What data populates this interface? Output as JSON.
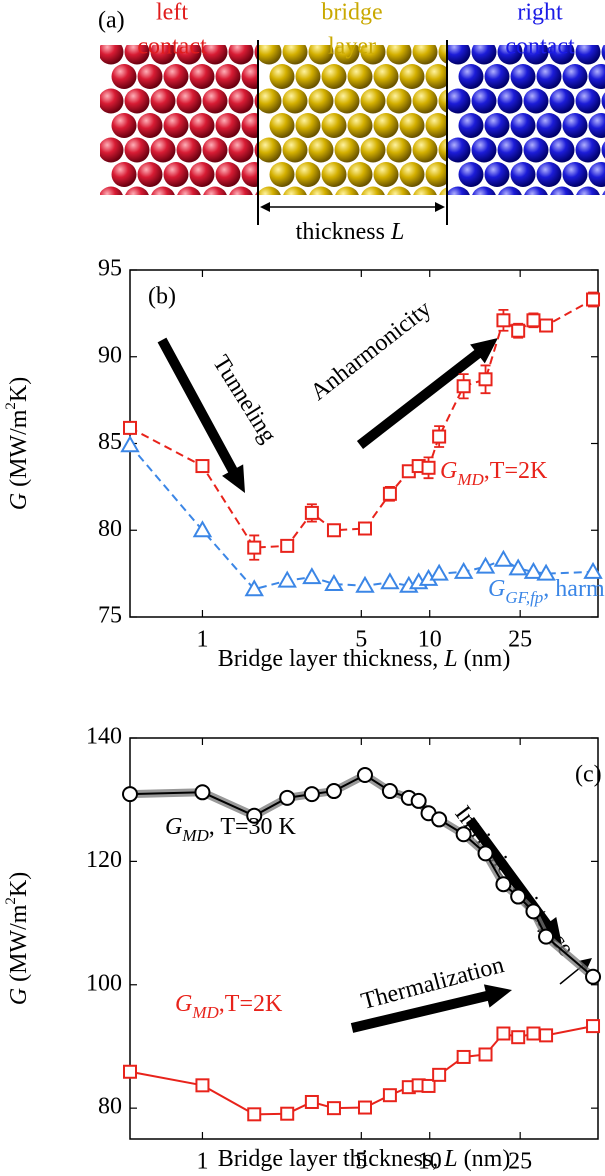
{
  "panel_a": {
    "label": "(a)",
    "left": [
      "left",
      "contact"
    ],
    "bridge": [
      "bridge",
      "layer"
    ],
    "right": [
      "right",
      "contact"
    ],
    "thickness": [
      "thickness ",
      "L"
    ]
  },
  "chart_data": [
    {
      "type": "line",
      "panel_label": "(b)",
      "log_x": true,
      "grid": false,
      "x_label": [
        "Bridge layer thickness, ",
        "L",
        " (nm)"
      ],
      "y_label": [
        "G",
        " (MW/m",
        "2",
        "K)"
      ],
      "x": [
        0.48,
        1.0,
        1.69,
        2.36,
        3.03,
        3.79,
        5.19,
        6.68,
        8.09,
        8.94,
        9.88,
        11.0,
        14.1,
        17.6,
        21.1,
        24.5,
        28.6,
        32.5,
        52.3
      ],
      "xlim": [
        0.48,
        55
      ],
      "xticks": [
        1,
        5,
        10,
        25
      ],
      "ylim": [
        75,
        95
      ],
      "yticks": [
        75,
        80,
        85,
        90,
        95
      ],
      "annotations": [
        "Tunneling",
        "Anharmonicity"
      ],
      "series": [
        {
          "name": [
            "G",
            "MD",
            ",T=2K"
          ],
          "color": "#e8231b",
          "marker": "square",
          "dashed": true,
          "values": [
            85.9,
            83.7,
            79.0,
            79.1,
            81.0,
            80.0,
            80.1,
            82.1,
            83.4,
            83.7,
            83.6,
            85.4,
            88.3,
            88.7,
            92.1,
            91.5,
            92.1,
            91.8,
            93.3
          ],
          "errors": [
            0.3,
            0.3,
            0.7,
            0.3,
            0.5,
            0.3,
            0.3,
            0.4,
            0.3,
            0.3,
            0.6,
            0.6,
            0.7,
            0.8,
            0.6,
            0.4,
            0.4,
            0.3,
            0.4
          ]
        },
        {
          "name": [
            "G",
            "GF,fp",
            ", harmonic"
          ],
          "color": "#3b86e6",
          "marker": "triangle",
          "dashed": true,
          "values": [
            84.9,
            80.0,
            76.6,
            77.1,
            77.3,
            76.9,
            76.8,
            77.0,
            76.8,
            77.0,
            77.2,
            77.5,
            77.6,
            77.9,
            78.3,
            77.8,
            77.6,
            77.5,
            77.6
          ]
        }
      ]
    },
    {
      "type": "line",
      "panel_label": "(c)",
      "log_x": true,
      "grid": false,
      "x_label": [
        "Bridge layer thickness, ",
        "L",
        " (nm)"
      ],
      "y_label": [
        "G",
        " (MW/m",
        "2",
        "K)"
      ],
      "x": [
        0.48,
        1.0,
        1.69,
        2.36,
        3.03,
        3.79,
        5.19,
        6.68,
        8.09,
        8.94,
        9.88,
        11.0,
        14.1,
        17.6,
        21.1,
        24.5,
        28.6,
        32.5,
        52.3
      ],
      "xlim": [
        0.48,
        55
      ],
      "xticks": [
        1,
        5,
        10,
        25
      ],
      "ylim": [
        75,
        140
      ],
      "yticks": [
        80,
        100,
        120,
        140
      ],
      "annotations": [
        "Intrinsic resistance",
        "Thermalization"
      ],
      "series": [
        {
          "name": [
            "G",
            "MD",
            ", T=30 K"
          ],
          "color": "#000000",
          "band_color": "#777777",
          "marker": "circle",
          "dashed": false,
          "values": [
            130.9,
            131.2,
            127.4,
            130.3,
            130.9,
            131.4,
            134.0,
            131.4,
            130.3,
            129.8,
            127.8,
            126.8,
            124.4,
            121.3,
            116.3,
            114.3,
            111.9,
            107.8,
            101.3
          ]
        },
        {
          "name": [
            "G",
            "MD",
            ",T=2K"
          ],
          "color": "#e8231b",
          "marker": "square",
          "dashed": false,
          "values": [
            85.9,
            83.7,
            79.0,
            79.1,
            81.0,
            80.0,
            80.1,
            82.1,
            83.4,
            83.7,
            83.6,
            85.4,
            88.3,
            88.7,
            92.1,
            91.5,
            92.1,
            91.8,
            93.3
          ]
        }
      ]
    }
  ]
}
